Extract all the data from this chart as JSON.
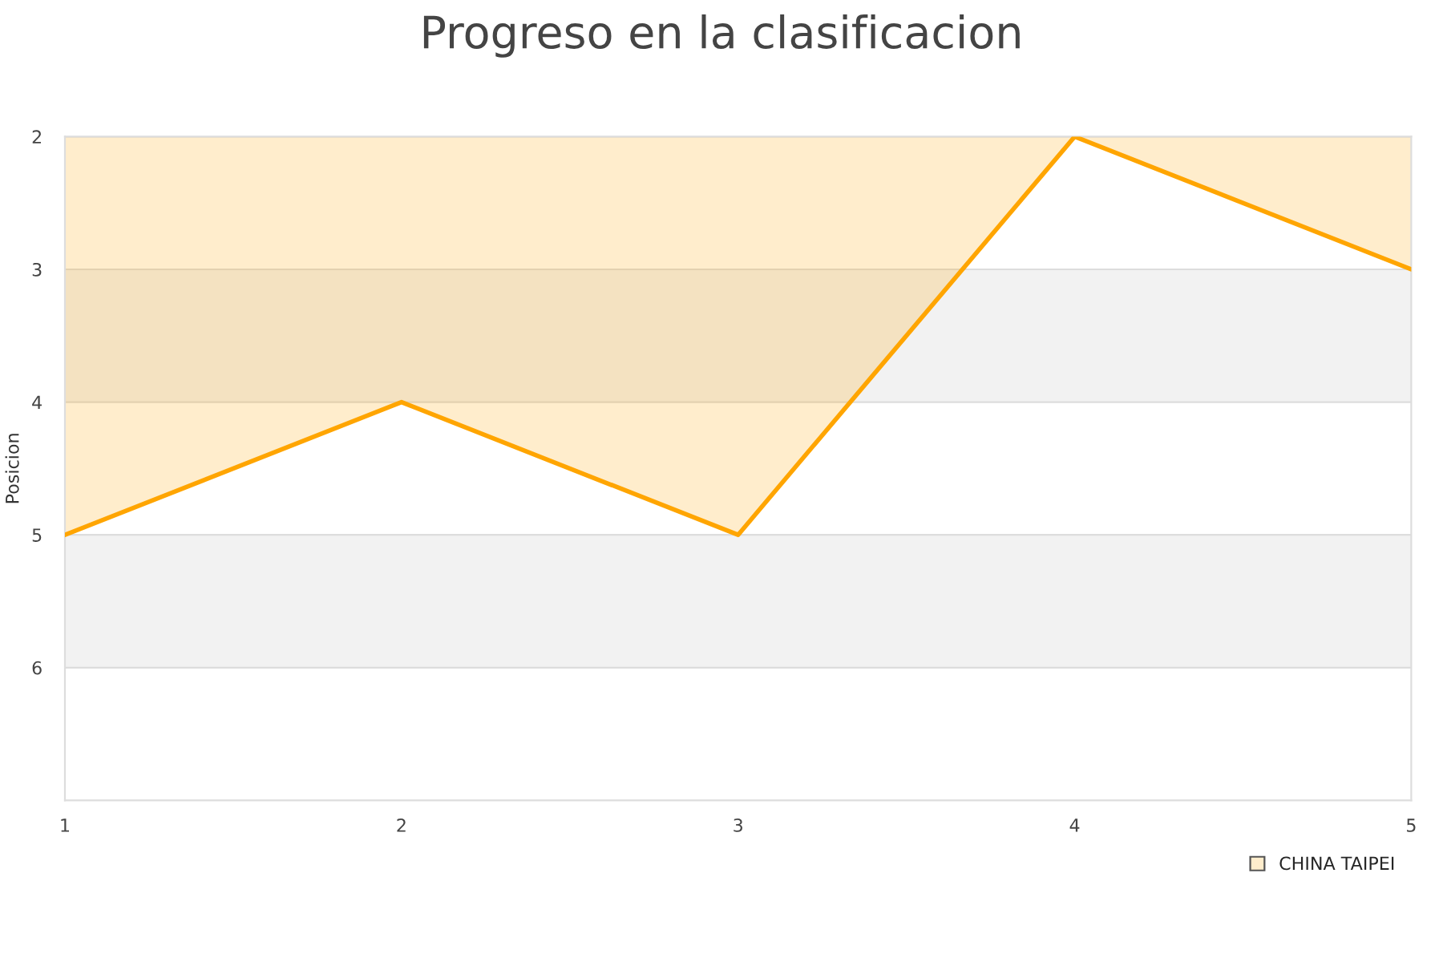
{
  "chart_data": {
    "type": "area",
    "title": "Progreso en la clasificacion",
    "ylabel": "Posicion",
    "x": [
      1,
      2,
      3,
      4,
      5
    ],
    "series": [
      {
        "name": "CHINA TAIPEI",
        "color": "#ffa500",
        "values": [
          5,
          4,
          5,
          2,
          3
        ]
      }
    ],
    "xlim": [
      1,
      5
    ],
    "xticks": [
      1,
      2,
      3,
      4,
      5
    ],
    "ylim": [
      7,
      2
    ],
    "yticks": [
      2,
      3,
      4,
      5,
      6
    ],
    "bands": [
      {
        "axis": "y",
        "from": 3,
        "to": 4,
        "color": "#f2f2f2"
      },
      {
        "axis": "y",
        "from": 5,
        "to": 6,
        "color": "#f2f2f2"
      }
    ],
    "grid": "y",
    "legend": "bottom right"
  }
}
